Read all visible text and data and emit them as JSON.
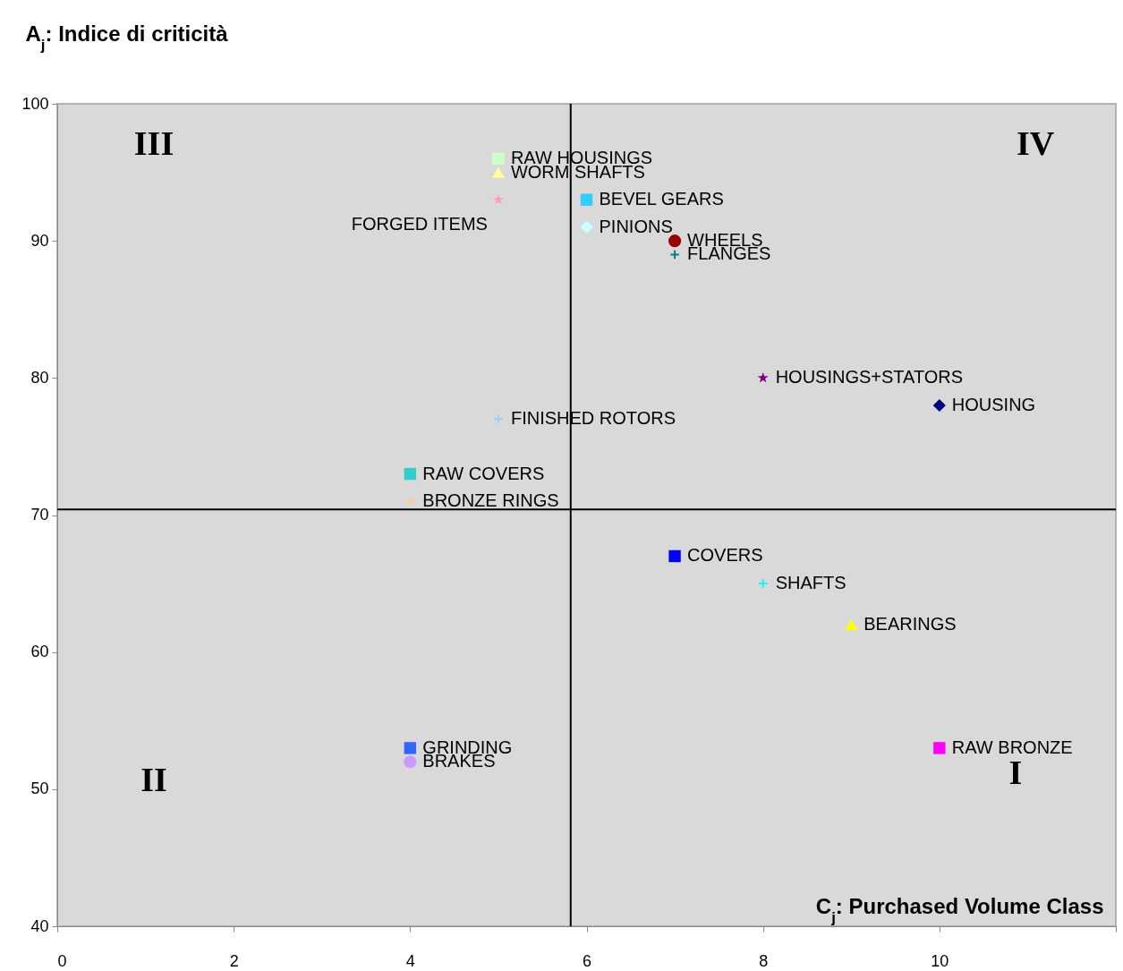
{
  "chart_data": {
    "type": "scatter",
    "xlabel": "C$_{j}$: Purchased Volume Class",
    "ylabel": "A$_{j}$: Indice di criticità",
    "xlim": [
      0,
      12
    ],
    "xticks": [
      0,
      2,
      4,
      6,
      8,
      10,
      {
        "value": 12,
        "label": null
      }
    ],
    "ylim": [
      40,
      100
    ],
    "yticks": [
      40,
      50,
      60,
      70,
      80,
      90,
      100
    ],
    "grid": false,
    "series": [
      {
        "name": "RAW HOUSINGS",
        "color": "#ccffcc",
        "marker": "square",
        "x": [
          5
        ],
        "values": [
          96
        ]
      },
      {
        "name": "WORM SHAFTS",
        "color": "#ffff99",
        "marker": "triangle",
        "x": [
          5
        ],
        "values": [
          95
        ]
      },
      {
        "name": "FORGED ITEMS",
        "color": "#ff99cc",
        "marker": "star",
        "x": [
          5
        ],
        "values": [
          93
        ]
      },
      {
        "name": "BEVEL GEARS",
        "color": "#33ccff",
        "marker": "square",
        "x": [
          6
        ],
        "values": [
          93
        ]
      },
      {
        "name": "PINIONS",
        "color": "#ccffff",
        "marker": "diamond",
        "x": [
          6
        ],
        "values": [
          91
        ]
      },
      {
        "name": "WHEELS",
        "color": "#990000",
        "marker": "circle",
        "x": [
          7
        ],
        "values": [
          90
        ]
      },
      {
        "name": "FLANGES",
        "color": "#008080",
        "marker": "cross",
        "x": [
          7
        ],
        "values": [
          89
        ]
      },
      {
        "name": "HOUSINGS+STATORS",
        "color": "#800080",
        "marker": "star",
        "x": [
          8
        ],
        "values": [
          80
        ]
      },
      {
        "name": "HOUSING",
        "color": "#000080",
        "marker": "diamond",
        "x": [
          10
        ],
        "values": [
          78
        ]
      },
      {
        "name": "FINISHED ROTORS",
        "color": "#99ccff",
        "marker": "cross",
        "x": [
          5
        ],
        "values": [
          77
        ]
      },
      {
        "name": "RAW COVERS",
        "color": "#33cccc",
        "marker": "square",
        "x": [
          4
        ],
        "values": [
          73
        ]
      },
      {
        "name": "BRONZE RINGS",
        "color": "#ffcc99",
        "marker": "cross",
        "x": [
          4
        ],
        "values": [
          71
        ]
      },
      {
        "name": "COVERS",
        "color": "#0000ff",
        "marker": "square",
        "x": [
          7
        ],
        "values": [
          67
        ]
      },
      {
        "name": "SHAFTS",
        "color": "#00ffff",
        "marker": "cross",
        "x": [
          8
        ],
        "values": [
          65
        ]
      },
      {
        "name": "BEARINGS",
        "color": "#ffff00",
        "marker": "triangle",
        "x": [
          9
        ],
        "values": [
          62
        ]
      },
      {
        "name": "RAW BRONZE",
        "color": "#ff00ff",
        "marker": "square",
        "x": [
          10
        ],
        "values": [
          53
        ]
      },
      {
        "name": "GRINDING",
        "color": "#3366ff",
        "marker": "square",
        "x": [
          4
        ],
        "values": [
          53
        ]
      },
      {
        "name": "BRAKES",
        "color": "#cc99ff",
        "marker": "circle",
        "x": [
          4
        ],
        "values": [
          52
        ]
      }
    ],
    "ref_lines": [
      {
        "axis": "x",
        "value": 5.82,
        "color": "#000000"
      },
      {
        "axis": "y",
        "value": 70.4,
        "color": "#000000"
      }
    ],
    "annotations": [
      "III",
      "IV",
      "II",
      "I"
    ]
  }
}
